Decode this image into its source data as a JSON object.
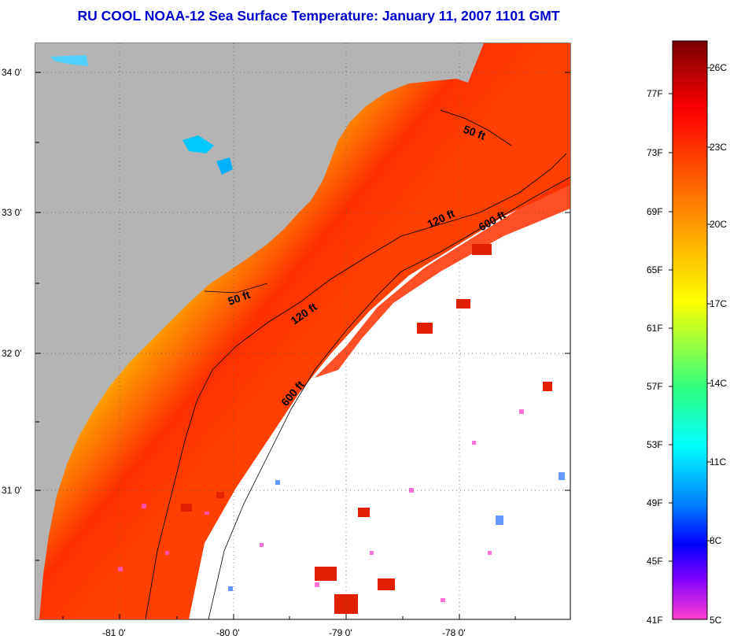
{
  "title": "RU COOL  NOAA-12  Sea Surface Temperature:  January 11, 2007 1101 GMT",
  "map": {
    "lat_labels": [
      "34 0'",
      "33 0'",
      "32 0'",
      "31 0'"
    ],
    "lon_labels": [
      "-81 0'",
      "-80 0'",
      "-79 0'",
      "-78 0'"
    ],
    "isobath_labels": [
      "50 ft",
      "50 ft",
      "120 ft",
      "120 ft",
      "600 ft",
      "600 ft"
    ],
    "colors": {
      "land": "#b4b4b4",
      "cloud": "#ffffff"
    }
  },
  "colorbar": {
    "fahrenheit_labels": [
      "77F",
      "73F",
      "69F",
      "65F",
      "61F",
      "57F",
      "53F",
      "49F",
      "45F",
      "41F"
    ],
    "celsius_labels": [
      "26C",
      "23C",
      "20C",
      "17C",
      "14C",
      "11C",
      "8C",
      "5C"
    ],
    "gradient_colors": [
      "#8b0000",
      "#ff0000",
      "#ff8c00",
      "#ffff00",
      "#00ff60",
      "#00ffff",
      "#0080ff",
      "#0000ff",
      "#8000ff",
      "#ff40c0"
    ]
  }
}
